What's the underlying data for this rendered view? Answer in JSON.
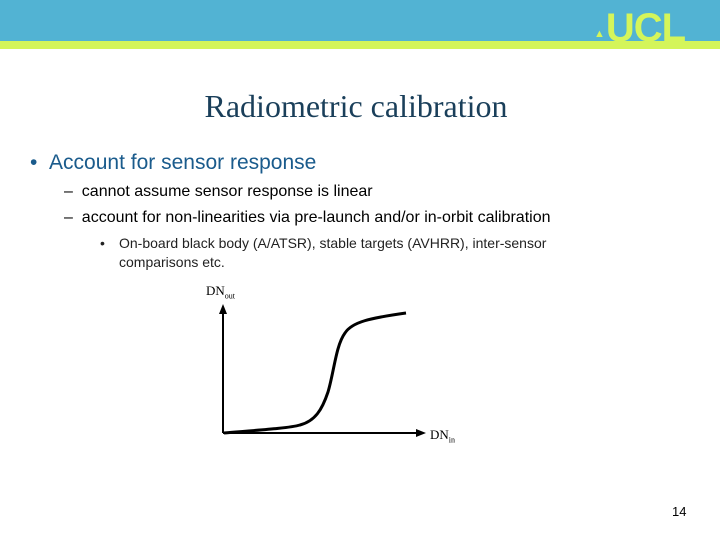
{
  "header": {
    "logo": "UCL",
    "colors": {
      "band": "#52b3d3",
      "accent": "#d4f55a"
    }
  },
  "title": "Radiometric calibration",
  "bullets": {
    "main": "Account for sensor response",
    "sub": [
      "cannot assume sensor response is linear",
      "account for non-linearities via pre-launch and/or in-orbit calibration"
    ],
    "subsub": "On-board black body (A/ATSR), stable targets (AVHRR), inter-sensor comparisons etc."
  },
  "diagram": {
    "y_label": {
      "base": "DN",
      "sub": "out"
    },
    "x_label": {
      "base": "DN",
      "sub": "in"
    }
  },
  "page_number": "14"
}
